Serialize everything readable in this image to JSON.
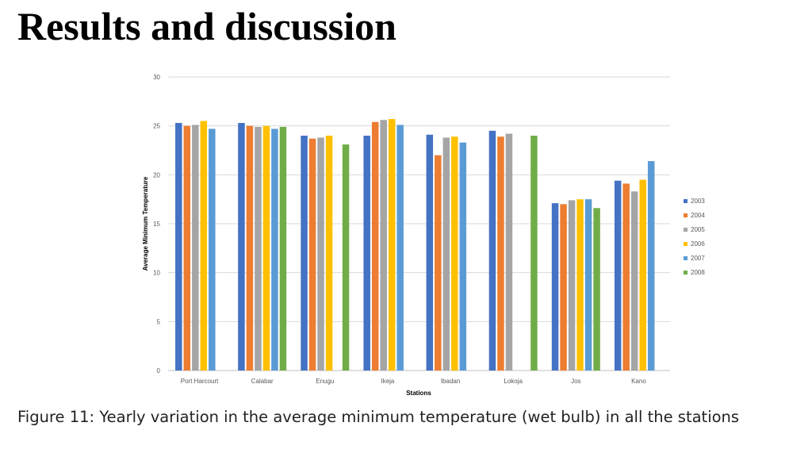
{
  "slide": {
    "title": "Results and discussion",
    "caption": "Figure 11: Yearly variation in the average minimum temperature (wet bulb) in all the stations"
  },
  "chart_data": {
    "type": "bar",
    "title": "",
    "xlabel": "Stations",
    "ylabel": "Average Minimum Temperature",
    "ylim": [
      0,
      30
    ],
    "yticks": [
      0,
      5,
      10,
      15,
      20,
      25,
      30
    ],
    "grid": true,
    "legend_position": "right",
    "categories": [
      "Port Harcourt",
      "Calabar",
      "Enugu",
      "Ikeja",
      "Ibadan",
      "Lokoja",
      "Jos",
      "Kano"
    ],
    "series": [
      {
        "name": "2003",
        "color": "#4472C4",
        "values": [
          25.3,
          25.3,
          24.0,
          24.0,
          24.1,
          24.5,
          17.1,
          19.4
        ]
      },
      {
        "name": "2004",
        "color": "#ED7D31",
        "values": [
          25.0,
          25.0,
          23.7,
          25.4,
          22.0,
          23.9,
          17.0,
          19.1
        ]
      },
      {
        "name": "2005",
        "color": "#A5A5A5",
        "values": [
          25.1,
          24.9,
          23.8,
          25.6,
          23.8,
          24.2,
          17.4,
          18.3
        ]
      },
      {
        "name": "2006",
        "color": "#FFC000",
        "values": [
          25.5,
          25.0,
          24.0,
          25.7,
          23.9,
          null,
          17.5,
          19.5
        ]
      },
      {
        "name": "2007",
        "color": "#5B9BD5",
        "values": [
          24.7,
          24.7,
          null,
          25.1,
          23.3,
          null,
          17.5,
          21.4
        ]
      },
      {
        "name": "2008",
        "color": "#70AD47",
        "values": [
          null,
          24.9,
          23.1,
          null,
          null,
          24.0,
          16.6,
          null
        ]
      }
    ]
  }
}
